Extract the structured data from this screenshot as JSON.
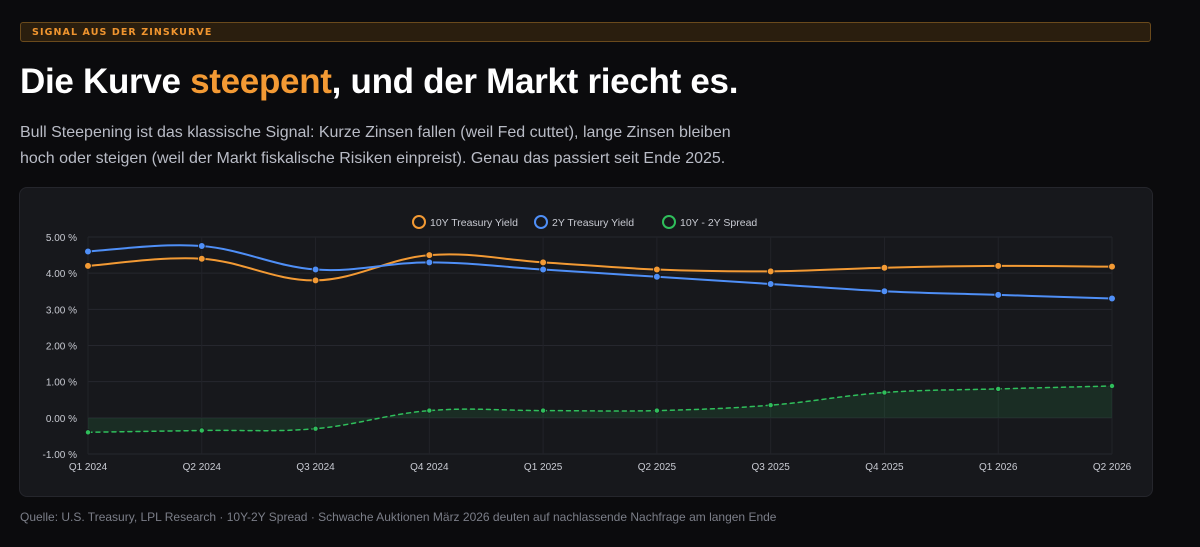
{
  "tag": "SIGNAL AUS DER ZINSKURVE",
  "headline": {
    "before": "Die Kurve ",
    "highlight": "steepent",
    "after": ", und der Markt riecht es."
  },
  "subtitle_line1": "Bull Steepening ist das klassische Signal: Kurze Zinsen fallen (weil Fed cuttet), lange Zinsen bleiben",
  "subtitle_line2": "hoch oder steigen (weil der Markt fiskalische Risiken einpreist). Genau das passiert seit Ende 2025.",
  "source": "Quelle: U.S. Treasury, LPL Research · 10Y-2Y Spread · Schwache Auktionen März 2026 deuten auf nachlassende Nachfrage am langen Ende",
  "chart_data": {
    "type": "line",
    "categories": [
      "Q1 2024",
      "Q2 2024",
      "Q3 2024",
      "Q4 2024",
      "Q1 2025",
      "Q2 2025",
      "Q3 2025",
      "Q4 2025",
      "Q1 2026",
      "Q2 2026"
    ],
    "series": [
      {
        "name": "10Y Treasury Yield",
        "color": "#f39a34",
        "style": "solid",
        "values": [
          4.2,
          4.4,
          3.8,
          4.5,
          4.3,
          4.1,
          4.05,
          4.15,
          4.2,
          4.18
        ]
      },
      {
        "name": "2Y Treasury Yield",
        "color": "#4f8ff7",
        "style": "solid",
        "values": [
          4.6,
          4.75,
          4.1,
          4.3,
          4.1,
          3.9,
          3.7,
          3.5,
          3.4,
          3.3
        ]
      },
      {
        "name": "10Y - 2Y Spread",
        "color": "#2fbe5b",
        "style": "dashed",
        "fill": true,
        "values": [
          -0.4,
          -0.35,
          -0.3,
          0.2,
          0.2,
          0.2,
          0.35,
          0.7,
          0.8,
          0.88
        ]
      }
    ],
    "ylim": [
      -1,
      5
    ],
    "yticks": [
      -1,
      0,
      1,
      2,
      3,
      4,
      5
    ],
    "ytick_labels": [
      "-1.00 %",
      "0.00 %",
      "1.00 %",
      "2.00 %",
      "3.00 %",
      "4.00 %",
      "5.00 %"
    ],
    "legend_position": "top-center",
    "grid": true
  }
}
